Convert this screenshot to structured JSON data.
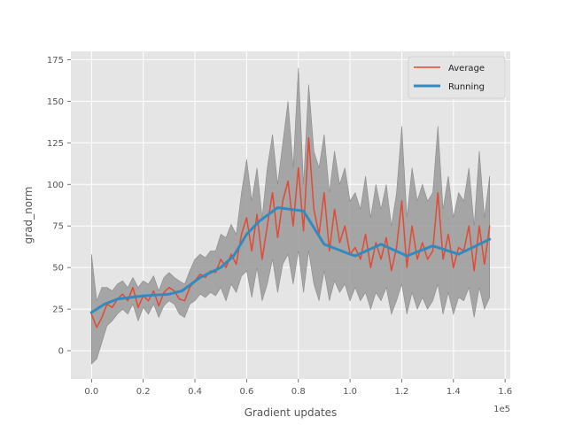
{
  "chart_data": {
    "type": "line",
    "xlabel": "Gradient updates",
    "ylabel": "grad_norm",
    "x_offset_label": "1e5",
    "xlim": [
      -0.08,
      1.62
    ],
    "ylim": [
      -17,
      180
    ],
    "x_ticks": [
      0.0,
      0.2,
      0.4,
      0.6,
      0.8,
      1.0,
      1.2,
      1.4,
      1.6
    ],
    "x_tick_labels": [
      "0.0",
      "0.2",
      "0.4",
      "0.6",
      "0.8",
      "1.0",
      "1.2",
      "1.4",
      "1.6"
    ],
    "y_ticks": [
      0,
      25,
      50,
      75,
      100,
      125,
      150,
      175
    ],
    "y_tick_labels": [
      "0",
      "25",
      "50",
      "75",
      "100",
      "125",
      "150",
      "175"
    ],
    "grid": true,
    "legend_position": "top-right",
    "colors": {
      "background": "#e5e5e5",
      "average": "#e24a33",
      "running": "#348abd",
      "band": "#9a9a9a",
      "grid": "#ffffff"
    },
    "series": [
      {
        "name": "Average",
        "x": [
          0.0,
          0.02,
          0.04,
          0.06,
          0.08,
          0.1,
          0.12,
          0.14,
          0.16,
          0.18,
          0.2,
          0.22,
          0.24,
          0.26,
          0.28,
          0.3,
          0.32,
          0.34,
          0.36,
          0.38,
          0.4,
          0.42,
          0.44,
          0.46,
          0.48,
          0.5,
          0.52,
          0.54,
          0.56,
          0.58,
          0.6,
          0.62,
          0.64,
          0.66,
          0.68,
          0.7,
          0.72,
          0.74,
          0.76,
          0.78,
          0.8,
          0.82,
          0.84,
          0.86,
          0.88,
          0.9,
          0.92,
          0.94,
          0.96,
          0.98,
          1.0,
          1.02,
          1.04,
          1.06,
          1.08,
          1.1,
          1.12,
          1.14,
          1.16,
          1.18,
          1.2,
          1.22,
          1.24,
          1.26,
          1.28,
          1.3,
          1.32,
          1.34,
          1.36,
          1.38,
          1.4,
          1.42,
          1.44,
          1.46,
          1.48,
          1.5,
          1.52,
          1.54
        ],
        "values": [
          22,
          14,
          20,
          28,
          26,
          31,
          34,
          30,
          38,
          26,
          33,
          30,
          36,
          27,
          35,
          38,
          36,
          31,
          30,
          38,
          42,
          46,
          44,
          48,
          47,
          55,
          50,
          58,
          52,
          70,
          80,
          60,
          82,
          55,
          75,
          95,
          68,
          90,
          102,
          75,
          110,
          72,
          128,
          85,
          70,
          95,
          60,
          85,
          65,
          75,
          58,
          62,
          55,
          70,
          50,
          65,
          55,
          68,
          48,
          62,
          90,
          50,
          75,
          55,
          65,
          55,
          60,
          95,
          55,
          70,
          50,
          62,
          60,
          75,
          48,
          75,
          52,
          75
        ]
      },
      {
        "name": "Running",
        "x": [
          0.0,
          0.05,
          0.1,
          0.2,
          0.3,
          0.35,
          0.42,
          0.5,
          0.55,
          0.6,
          0.65,
          0.72,
          0.82,
          0.9,
          1.0,
          1.02,
          1.12,
          1.22,
          1.32,
          1.42,
          1.54
        ],
        "values": [
          23,
          28,
          31,
          33,
          34,
          36,
          44,
          50,
          57,
          70,
          78,
          86,
          84,
          64,
          58,
          57,
          64,
          57,
          63,
          58,
          67
        ]
      }
    ],
    "band": {
      "x": [
        0.0,
        0.02,
        0.04,
        0.06,
        0.08,
        0.1,
        0.12,
        0.14,
        0.16,
        0.18,
        0.2,
        0.22,
        0.24,
        0.26,
        0.28,
        0.3,
        0.32,
        0.34,
        0.36,
        0.38,
        0.4,
        0.42,
        0.44,
        0.46,
        0.48,
        0.5,
        0.52,
        0.54,
        0.56,
        0.58,
        0.6,
        0.62,
        0.64,
        0.66,
        0.68,
        0.7,
        0.72,
        0.74,
        0.76,
        0.78,
        0.8,
        0.82,
        0.84,
        0.86,
        0.88,
        0.9,
        0.92,
        0.94,
        0.96,
        0.98,
        1.0,
        1.02,
        1.04,
        1.06,
        1.08,
        1.1,
        1.12,
        1.14,
        1.16,
        1.18,
        1.2,
        1.22,
        1.24,
        1.26,
        1.28,
        1.3,
        1.32,
        1.34,
        1.36,
        1.38,
        1.4,
        1.42,
        1.44,
        1.46,
        1.48,
        1.5,
        1.52,
        1.54
      ],
      "lower": [
        -8,
        -5,
        5,
        15,
        18,
        22,
        25,
        22,
        28,
        18,
        26,
        22,
        28,
        20,
        27,
        30,
        28,
        22,
        20,
        28,
        30,
        34,
        32,
        35,
        33,
        38,
        30,
        40,
        35,
        45,
        48,
        32,
        50,
        30,
        40,
        55,
        35,
        52,
        58,
        40,
        60,
        35,
        60,
        40,
        30,
        48,
        30,
        42,
        35,
        40,
        30,
        38,
        30,
        35,
        25,
        35,
        30,
        38,
        22,
        30,
        40,
        22,
        35,
        25,
        32,
        25,
        30,
        40,
        22,
        35,
        22,
        32,
        30,
        38,
        20,
        38,
        25,
        32
      ],
      "upper": [
        58,
        30,
        38,
        38,
        36,
        40,
        42,
        38,
        44,
        38,
        42,
        40,
        45,
        36,
        44,
        47,
        44,
        42,
        40,
        48,
        55,
        58,
        56,
        60,
        60,
        70,
        68,
        76,
        70,
        95,
        115,
        90,
        110,
        80,
        110,
        130,
        100,
        125,
        150,
        110,
        170,
        100,
        160,
        120,
        110,
        130,
        95,
        120,
        100,
        110,
        90,
        95,
        85,
        105,
        80,
        100,
        85,
        100,
        75,
        95,
        135,
        80,
        110,
        90,
        100,
        90,
        95,
        135,
        85,
        105,
        80,
        95,
        90,
        110,
        75,
        120,
        80,
        105
      ]
    }
  }
}
